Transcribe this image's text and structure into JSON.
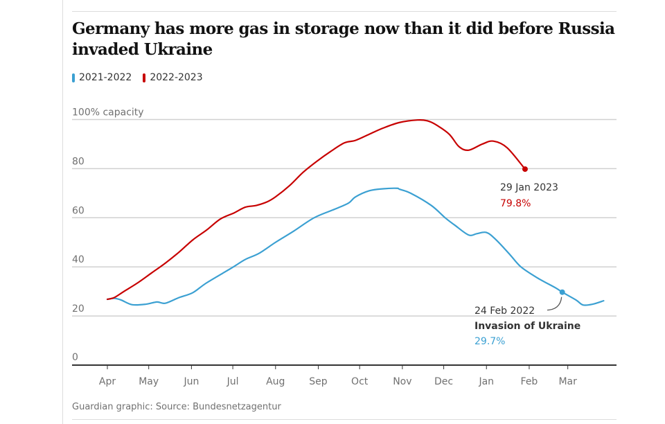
{
  "chart_data": {
    "type": "line",
    "title": "Germany has more gas in storage now than it did before Russia invaded Ukraine",
    "xlabel": "",
    "ylabel": "100% capacity",
    "ylim": [
      0,
      100
    ],
    "yticks": [
      0,
      20,
      40,
      60,
      80,
      100
    ],
    "ytick_labels": [
      "0",
      "20",
      "40",
      "60",
      "80",
      "100% capacity"
    ],
    "x_unit": "days since 1 Apr",
    "xlim": [
      0,
      365
    ],
    "xticks": [
      0,
      30,
      61,
      91,
      122,
      153,
      183,
      214,
      244,
      275,
      306,
      334
    ],
    "xtick_labels": [
      "Apr",
      "May",
      "Jun",
      "Jul",
      "Aug",
      "Sep",
      "Oct",
      "Nov",
      "Dec",
      "Jan",
      "Feb",
      "Mar"
    ],
    "grid": true,
    "legend_position": "top-left",
    "series": [
      {
        "name": "2021-2022",
        "color": "#3ba0d2",
        "x": [
          0,
          5,
          10,
          18,
          28,
          36,
          42,
          52,
          62,
          72,
          90,
          100,
          110,
          122,
          135,
          150,
          165,
          175,
          180,
          190,
          200,
          210,
          212,
          220,
          235,
          245,
          252,
          262,
          268,
          275,
          282,
          292,
          300,
          312,
          325,
          330,
          340,
          345,
          352,
          360
        ],
        "values": [
          26.8,
          27.2,
          26.5,
          24.6,
          24.8,
          25.7,
          25.2,
          27.5,
          29.5,
          33.5,
          39.5,
          43,
          45.5,
          50,
          54.5,
          60,
          63.5,
          66,
          68.5,
          71,
          71.8,
          72,
          71.6,
          70,
          65,
          60,
          57,
          53,
          53.5,
          54,
          51,
          45,
          40,
          35.5,
          31.5,
          29.7,
          26.5,
          24.5,
          24.8,
          26.2
        ]
      },
      {
        "name": "2022-2023",
        "color": "#c70000",
        "x": [
          0,
          5,
          12,
          22,
          32,
          42,
          52,
          62,
          72,
          82,
          92,
          100,
          108,
          116,
          122,
          132,
          142,
          152,
          162,
          172,
          180,
          190,
          200,
          212,
          225,
          232,
          238,
          248,
          255,
          262,
          272,
          280,
          290,
          303
        ],
        "values": [
          26.8,
          27.5,
          30,
          33.5,
          37.5,
          41.5,
          46,
          51,
          55,
          59.5,
          62,
          64.3,
          65,
          66.5,
          68.5,
          73,
          78.5,
          83,
          87,
          90.5,
          91.5,
          94,
          96.5,
          98.8,
          99.8,
          99.5,
          98,
          94,
          89,
          87.5,
          90,
          91.2,
          88.5,
          79.8
        ]
      }
    ],
    "annotations": [
      {
        "series": "2022-2023",
        "date": "29 Jan 2023",
        "value_label": "79.8%",
        "x": 303,
        "value": 79.8
      },
      {
        "series": "2021-2022",
        "date": "24 Feb 2022",
        "event": "Invasion of Ukraine",
        "value_label": "29.7%",
        "x": 330,
        "value": 29.7
      }
    ]
  },
  "header": {
    "title": "Germany has more gas in storage now than it did before Russia invaded Ukraine"
  },
  "legend": [
    {
      "label": "2021-2022",
      "color": "#3ba0d2"
    },
    {
      "label": "2022-2023",
      "color": "#c70000"
    }
  ],
  "footer": {
    "source": "Guardian graphic: Source: Bundesnetzagentur"
  }
}
